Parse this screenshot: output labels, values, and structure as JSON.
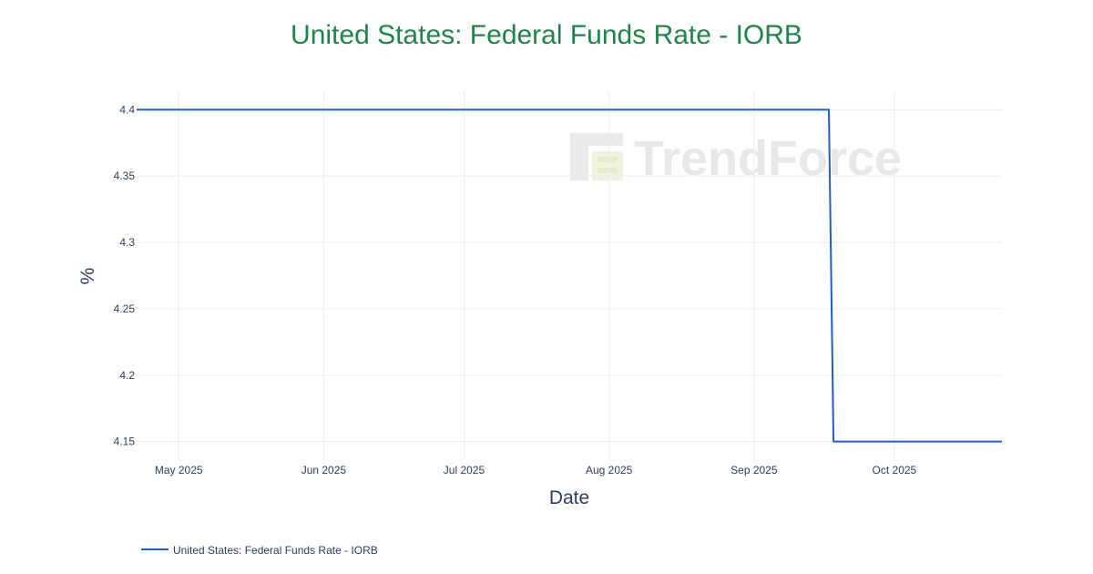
{
  "chart_data": {
    "type": "line",
    "title": "United States: Federal Funds Rate - IORB",
    "xlabel": "Date",
    "ylabel": "%",
    "x_ticks": [
      {
        "date": "2025-05-01",
        "label": "May 2025"
      },
      {
        "date": "2025-06-01",
        "label": "Jun 2025"
      },
      {
        "date": "2025-07-01",
        "label": "Jul 2025"
      },
      {
        "date": "2025-08-01",
        "label": "Aug 2025"
      },
      {
        "date": "2025-09-01",
        "label": "Sep 2025"
      },
      {
        "date": "2025-10-01",
        "label": "Oct 2025"
      }
    ],
    "y_ticks": [
      {
        "value": 4.15,
        "label": "4.15"
      },
      {
        "value": 4.2,
        "label": "4.2"
      },
      {
        "value": 4.25,
        "label": "4.25"
      },
      {
        "value": 4.3,
        "label": "4.3"
      },
      {
        "value": 4.35,
        "label": "4.35"
      },
      {
        "value": 4.4,
        "label": "4.4"
      }
    ],
    "xlim": [
      "2025-04-22",
      "2025-10-24"
    ],
    "ylim": [
      4.136,
      4.414
    ],
    "grid": true,
    "legend_position": "bottom-left",
    "series": [
      {
        "name": "United States: Federal Funds Rate - IORB",
        "color": "#1f5fc9",
        "points": [
          {
            "x": "2025-04-22",
            "y": 4.4
          },
          {
            "x": "2025-09-17",
            "y": 4.4
          },
          {
            "x": "2025-09-18",
            "y": 4.15
          },
          {
            "x": "2025-10-24",
            "y": 4.15
          }
        ]
      }
    ]
  },
  "watermark": {
    "text": "TrendForce"
  },
  "colors": {
    "title": "#1e8449",
    "grid": "#eeeeee",
    "axis_text": "#2a3f5f"
  }
}
